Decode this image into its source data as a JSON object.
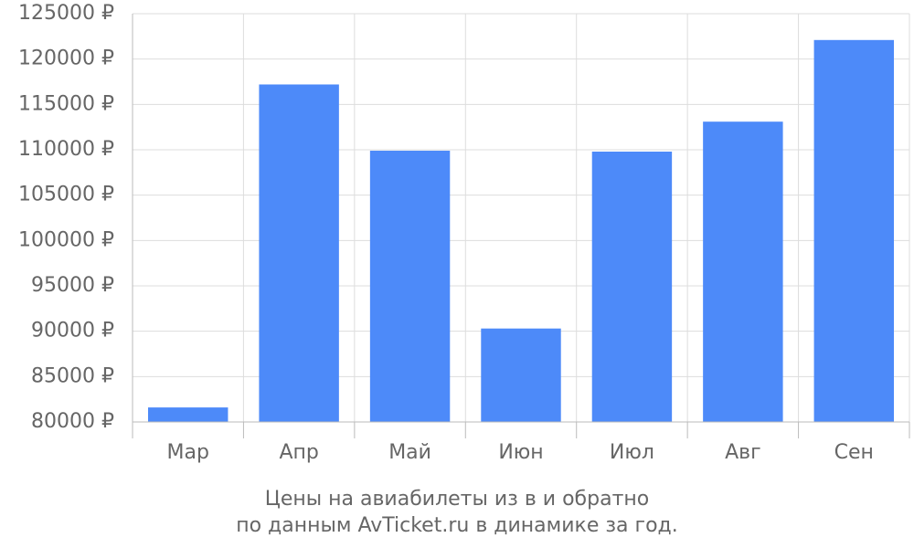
{
  "chart_data": {
    "type": "bar",
    "title": [
      "Цены на авиабилеты из  в  и обратно",
      "по данным AvTicket.ru в динамике за год."
    ],
    "categories": [
      "Мар",
      "Апр",
      "Май",
      "Июн",
      "Июл",
      "Авг",
      "Сен"
    ],
    "values": [
      81600,
      117200,
      109900,
      90300,
      109800,
      113100,
      122100
    ],
    "color": "#4d8af9",
    "ylim": [
      80000,
      125000
    ],
    "yticks": [
      {
        "value": 80000,
        "label": "80000 ₽"
      },
      {
        "value": 85000,
        "label": "85000 ₽"
      },
      {
        "value": 90000,
        "label": "90000 ₽"
      },
      {
        "value": 95000,
        "label": "95000 ₽"
      },
      {
        "value": 100000,
        "label": "100000 ₽"
      },
      {
        "value": 105000,
        "label": "105000 ₽"
      },
      {
        "value": 110000,
        "label": "110000 ₽"
      },
      {
        "value": 115000,
        "label": "115000 ₽"
      },
      {
        "value": 120000,
        "label": "120000 ₽"
      },
      {
        "value": 125000,
        "label": "125000 ₽"
      }
    ],
    "grid": true
  }
}
